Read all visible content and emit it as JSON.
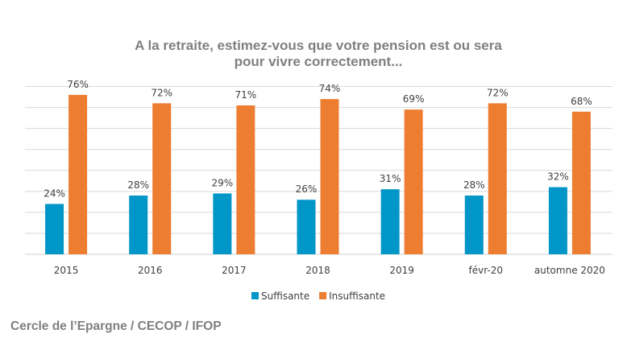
{
  "chart_data": {
    "type": "bar",
    "title": "A la retraite, estimez-vous que votre pension est ou sera",
    "title_line2": "pour vivre correctement...",
    "categories": [
      "2015",
      "2016",
      "2017",
      "2018",
      "2019",
      "févr-20",
      "automne 2020"
    ],
    "series": [
      {
        "name": "Suffisante",
        "color": "#0096C8",
        "values": [
          24,
          28,
          29,
          26,
          31,
          28,
          32
        ]
      },
      {
        "name": "Insuffisante",
        "color": "#ED7D31",
        "values": [
          76,
          72,
          71,
          74,
          69,
          72,
          68
        ]
      }
    ],
    "value_suffix": "%",
    "ylim": [
      0,
      80
    ],
    "ytick_step": 10,
    "grid": true,
    "legend_position": "bottom",
    "source": "Cercle de l’Epargne / CECOP / IFOP"
  }
}
